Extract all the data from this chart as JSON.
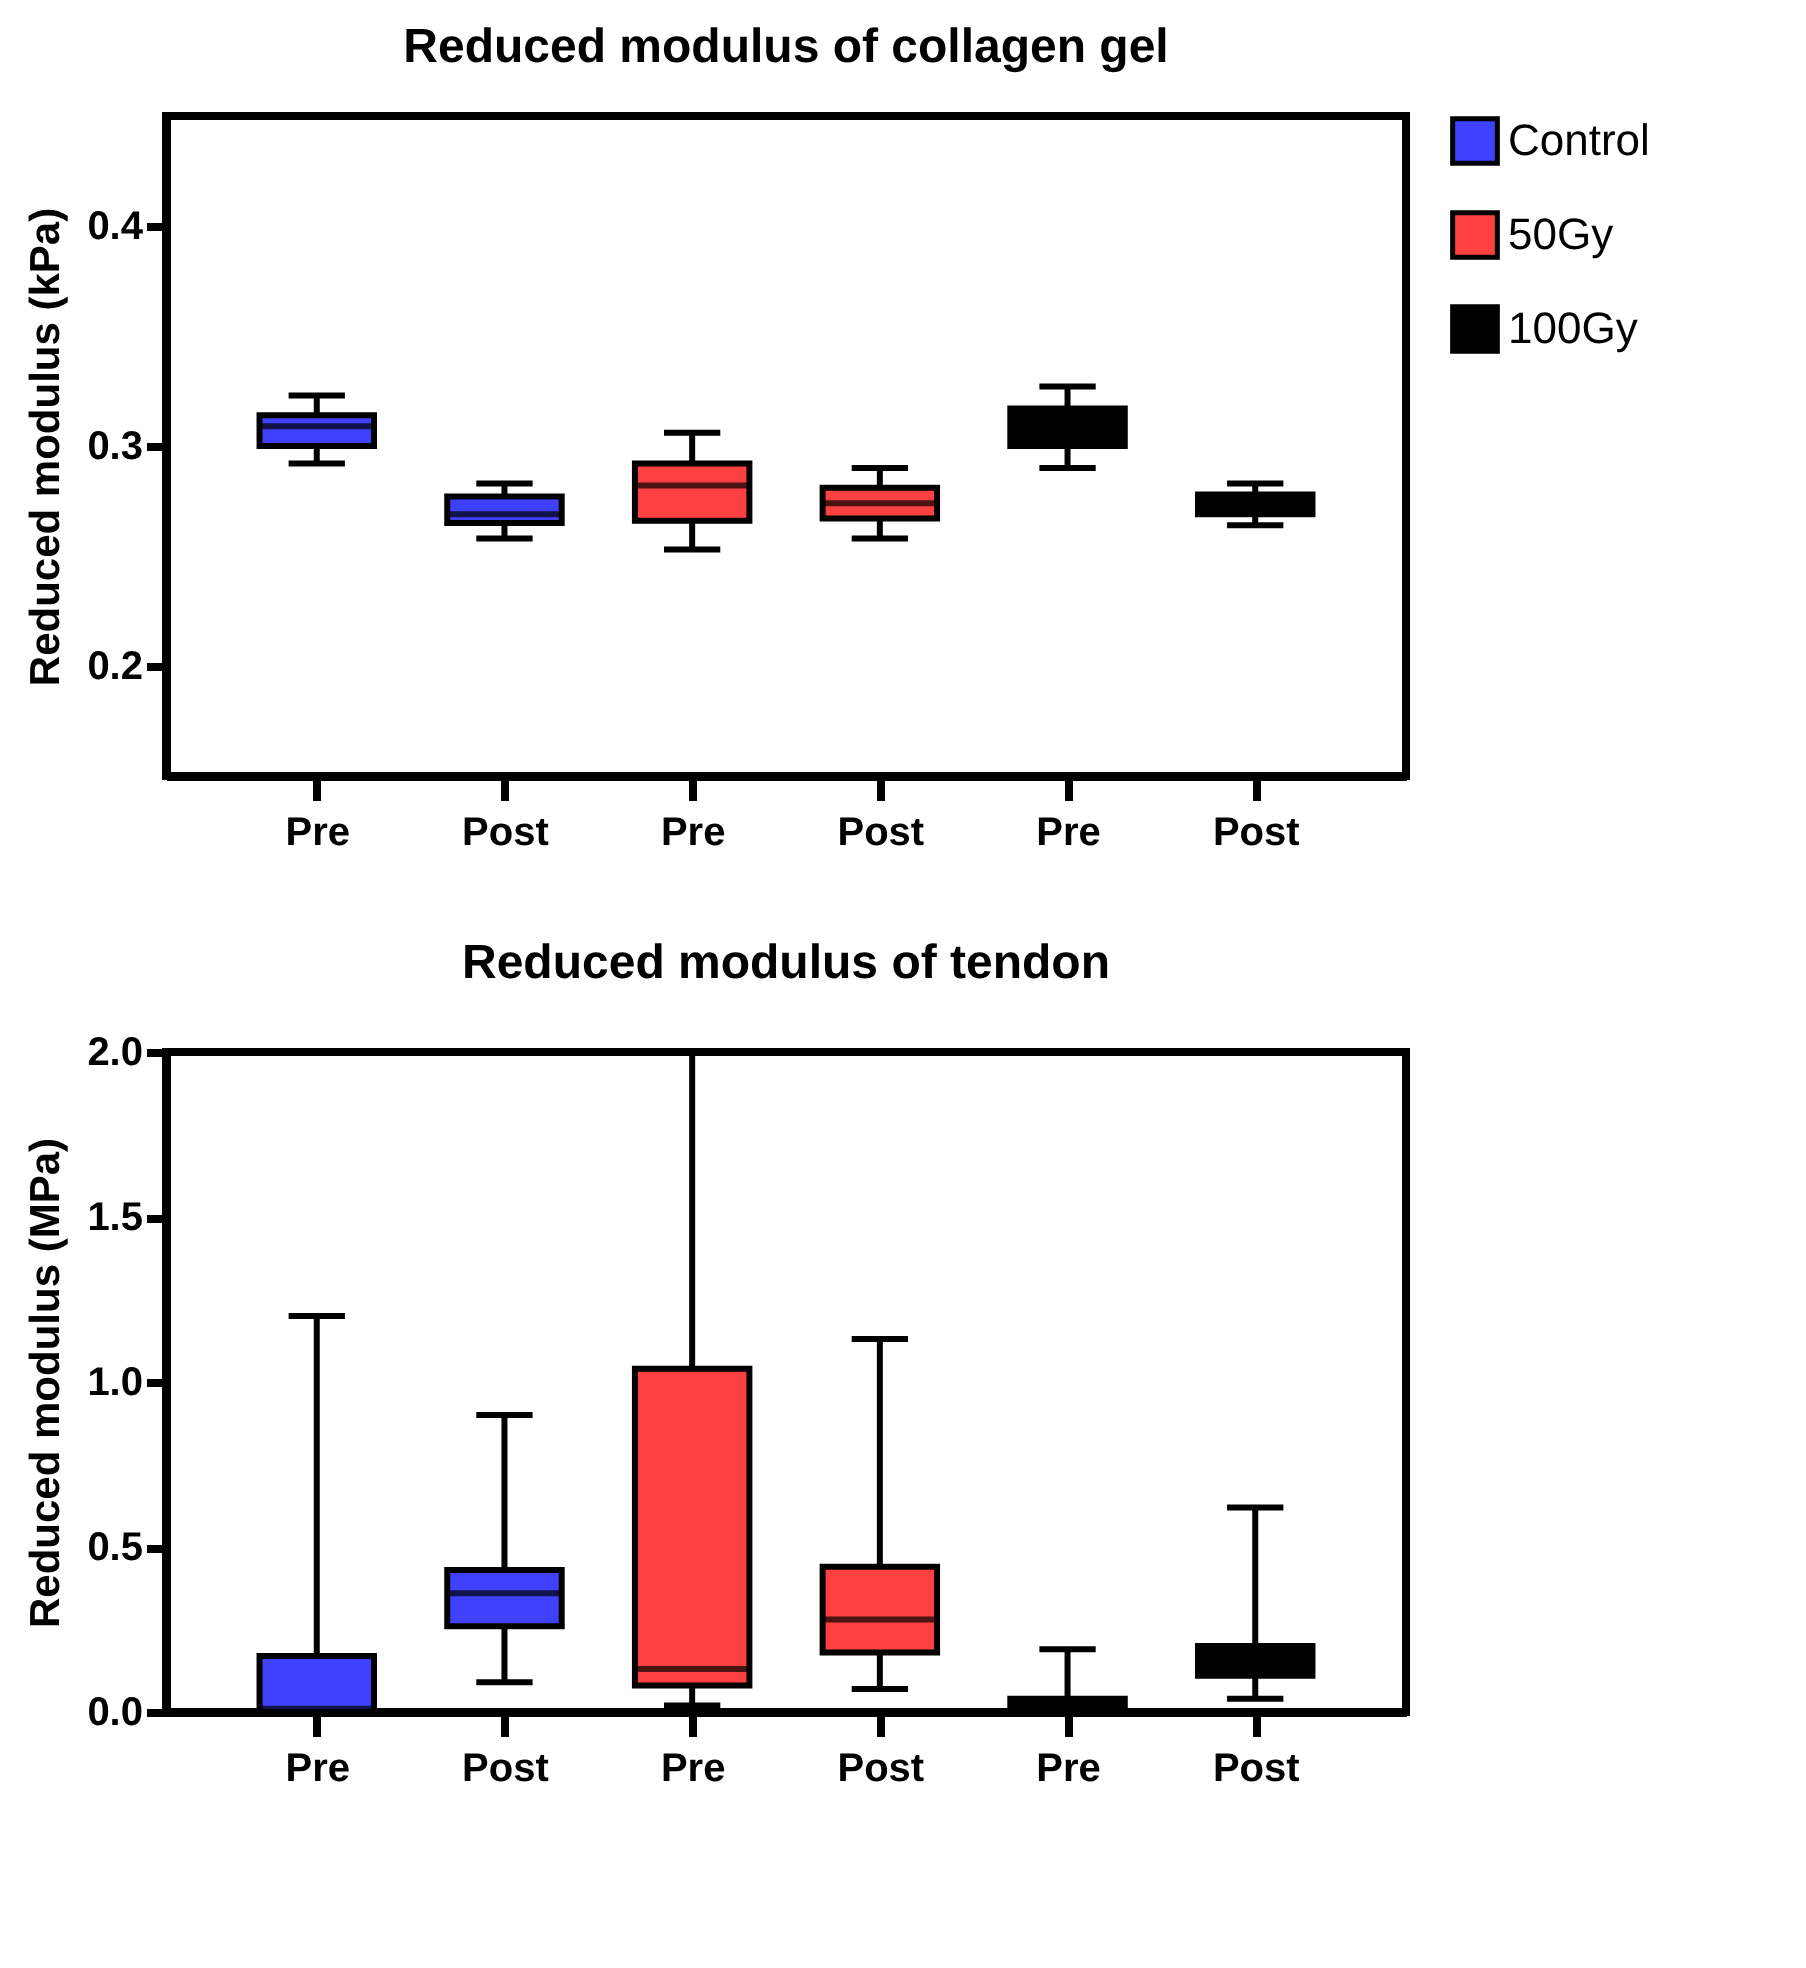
{
  "chart_data": [
    {
      "type": "box",
      "title": "Reduced modulus of collagen gel",
      "ylabel": "Reduced modulus (kPa)",
      "categories": [
        "Pre",
        "Post",
        "Pre",
        "Post",
        "Pre",
        "Post"
      ],
      "series": [
        {
          "name": "Control",
          "color": "#4040ff",
          "boxes": [
            {
              "low": 0.292,
              "q1": 0.3,
              "median": 0.309,
              "q3": 0.314,
              "high": 0.323
            },
            {
              "low": 0.258,
              "q1": 0.265,
              "median": 0.269,
              "q3": 0.277,
              "high": 0.283
            },
            null,
            null,
            null,
            null
          ]
        },
        {
          "name": "50Gy",
          "color": "#ff4040",
          "boxes": [
            null,
            null,
            {
              "low": 0.253,
              "q1": 0.266,
              "median": 0.282,
              "q3": 0.292,
              "high": 0.306
            },
            {
              "low": 0.258,
              "q1": 0.267,
              "median": 0.274,
              "q3": 0.281,
              "high": 0.29
            },
            null,
            null
          ]
        },
        {
          "name": "100Gy",
          "color": "#000000",
          "boxes": [
            null,
            null,
            null,
            null,
            {
              "low": 0.29,
              "q1": 0.3,
              "median": 0.306,
              "q3": 0.317,
              "high": 0.327
            },
            {
              "low": 0.264,
              "q1": 0.269,
              "median": 0.274,
              "q3": 0.278,
              "high": 0.283
            }
          ]
        }
      ],
      "ylim": [
        0.15,
        0.45
      ],
      "yticks": [
        0.2,
        0.3,
        0.4
      ],
      "grid": false,
      "legend": "right"
    },
    {
      "type": "box",
      "title": "Reduced modulus of tendon",
      "ylabel": "Reduced modulus (MPa)",
      "categories": [
        "Pre",
        "Post",
        "Pre",
        "Post",
        "Pre",
        "Post"
      ],
      "series": [
        {
          "name": "Control",
          "color": "#4040ff",
          "boxes": [
            {
              "low": 0.0,
              "q1": 0.0,
              "median": 0.01,
              "q3": 0.17,
              "high": 1.2
            },
            {
              "low": 0.09,
              "q1": 0.26,
              "median": 0.36,
              "q3": 0.43,
              "high": 0.9
            },
            null,
            null,
            null,
            null
          ]
        },
        {
          "name": "50Gy",
          "color": "#ff4040",
          "boxes": [
            null,
            null,
            {
              "low": 0.02,
              "q1": 0.08,
              "median": 0.13,
              "q3": 1.04,
              "high": 2.0
            },
            {
              "low": 0.07,
              "q1": 0.18,
              "median": 0.28,
              "q3": 0.44,
              "high": 1.13
            },
            null,
            null
          ]
        },
        {
          "name": "100Gy",
          "color": "#000000",
          "boxes": [
            null,
            null,
            null,
            null,
            {
              "low": 0.0,
              "q1": 0.0,
              "median": 0.02,
              "q3": 0.04,
              "high": 0.19
            },
            {
              "low": 0.04,
              "q1": 0.11,
              "median": 0.16,
              "q3": 0.2,
              "high": 0.62
            }
          ]
        }
      ],
      "ylim": [
        0,
        2
      ],
      "yticks": [
        {
          "value": 0,
          "label": "0.0"
        },
        0.5,
        {
          "value": 1,
          "label": "1.0"
        },
        1.5,
        {
          "value": 2,
          "label": "2.0"
        }
      ],
      "grid": false,
      "legend": "right"
    }
  ]
}
